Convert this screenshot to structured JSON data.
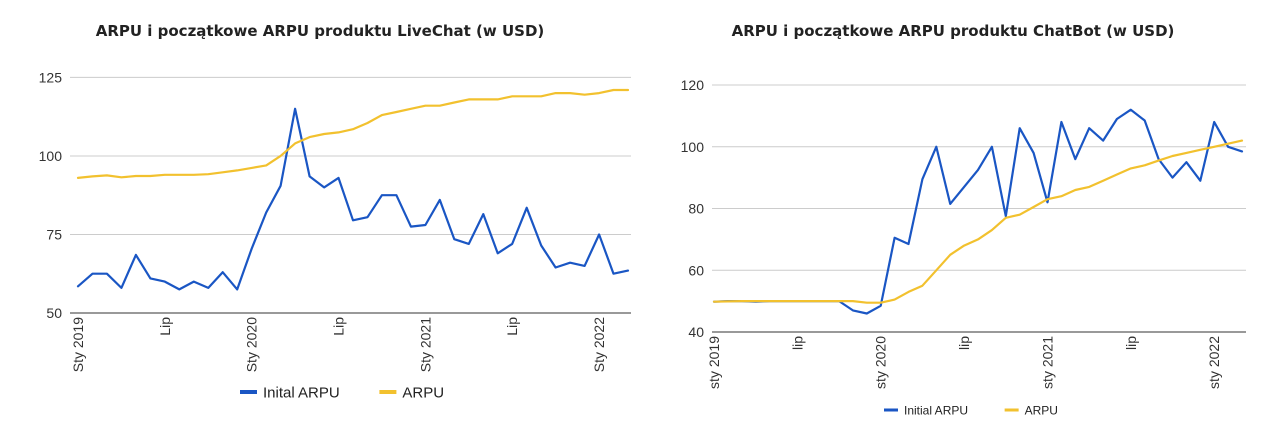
{
  "colors": {
    "initial": "#1a56c4",
    "arpu": "#f2c12e",
    "grid": "#cccccc"
  },
  "chart_data": [
    {
      "type": "line",
      "title": "ARPU i początkowe ARPU produktu LiveChat (w USD)",
      "xlabel": "",
      "ylabel": "",
      "x_ticks": [
        {
          "label": "Sty 2019",
          "index": 0
        },
        {
          "label": "Lip",
          "index": 6
        },
        {
          "label": "Sty 2020",
          "index": 12
        },
        {
          "label": "Lip",
          "index": 18
        },
        {
          "label": "Sty 2021",
          "index": 24
        },
        {
          "label": "Lip",
          "index": 30
        },
        {
          "label": "Sty 2022",
          "index": 36
        }
      ],
      "y_ticks": [
        50,
        75,
        100,
        125
      ],
      "ylim": [
        50,
        135
      ],
      "grid": true,
      "legend_position": "bottom",
      "series": [
        {
          "name": "Inital ARPU",
          "color_key": "initial",
          "values": [
            58.5,
            62.5,
            62.5,
            58,
            68.5,
            61,
            60,
            57.5,
            60,
            58,
            63,
            57.5,
            70.5,
            82,
            90.5,
            115,
            93.5,
            90,
            93,
            79.5,
            80.5,
            87.5,
            87.5,
            77.5,
            78,
            86,
            73.5,
            72,
            81.5,
            69,
            72,
            83.5,
            71.5,
            64.5,
            66,
            65,
            75,
            62.5,
            63.5
          ]
        },
        {
          "name": "ARPU",
          "color_key": "arpu",
          "values": [
            93,
            93.5,
            93.8,
            93.2,
            93.6,
            93.6,
            94,
            94,
            94,
            94.2,
            94.8,
            95.4,
            96.2,
            97,
            100,
            104,
            106,
            107,
            107.5,
            108.5,
            110.5,
            113,
            114,
            115,
            116,
            116,
            117,
            118,
            118,
            118,
            119,
            119,
            119,
            120,
            120,
            119.5,
            120,
            121,
            121
          ]
        }
      ]
    },
    {
      "type": "line",
      "title": "ARPU i początkowe ARPU produktu ChatBot (w USD)",
      "xlabel": "",
      "ylabel": "",
      "x_ticks": [
        {
          "label": "sty 2019",
          "index": 0
        },
        {
          "label": "lip",
          "index": 6
        },
        {
          "label": "sty 2020",
          "index": 12
        },
        {
          "label": "lip",
          "index": 18
        },
        {
          "label": "sty 2021",
          "index": 24
        },
        {
          "label": "lip",
          "index": 30
        },
        {
          "label": "sty 2022",
          "index": 36
        }
      ],
      "y_ticks": [
        40,
        60,
        80,
        100,
        120
      ],
      "ylim": [
        40,
        120
      ],
      "grid": true,
      "legend_position": "bottom",
      "series": [
        {
          "name": "Initial ARPU",
          "color_key": "initial",
          "values": [
            49.8,
            50,
            50,
            49.8,
            50,
            50,
            50,
            50,
            50,
            50,
            47,
            46,
            48.5,
            70.5,
            68.5,
            89.5,
            100,
            81.5,
            87,
            92.5,
            100,
            77.5,
            106,
            98,
            82,
            108,
            96,
            106,
            102,
            109,
            112,
            108.5,
            96,
            90,
            95,
            89,
            108,
            100,
            98.5
          ]
        },
        {
          "name": "ARPU",
          "color_key": "arpu",
          "values": [
            49.8,
            49.9,
            50,
            50,
            50,
            50,
            50,
            50,
            50,
            50,
            50,
            49.5,
            49.5,
            50.5,
            53,
            55,
            60,
            65,
            68,
            70,
            73,
            77,
            78,
            80.5,
            83,
            84,
            86,
            87,
            89,
            91,
            93,
            94,
            95.5,
            97,
            98,
            99,
            100,
            101,
            102
          ]
        }
      ]
    }
  ]
}
